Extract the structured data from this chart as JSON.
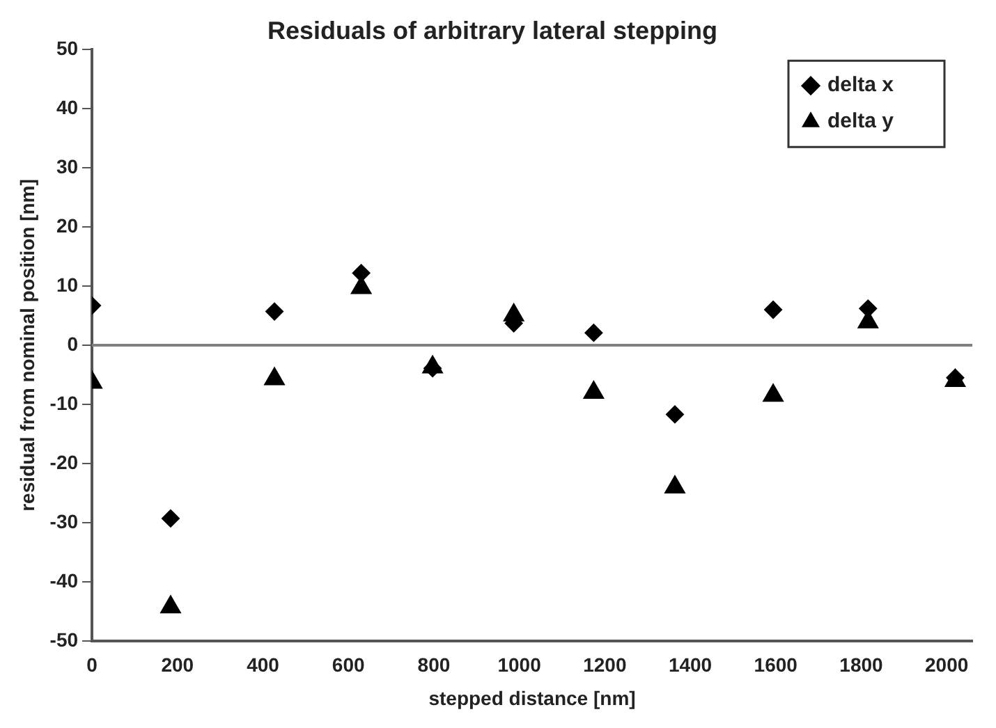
{
  "chart_data": {
    "type": "scatter",
    "title": "Residuals of arbitrary lateral stepping",
    "xlabel": "stepped distance [nm]",
    "ylabel": "residual from nominal position [nm]",
    "x": [
      0,
      184,
      427,
      630,
      797,
      987,
      1174,
      1364,
      1594,
      1816,
      2020
    ],
    "series": [
      {
        "name": "delta x",
        "color": "#000000",
        "marker": "diamond",
        "values": [
          6.7,
          -29.3,
          5.7,
          12.2,
          -3.9,
          3.7,
          2.1,
          -11.7,
          6.0,
          6.2,
          -5.5
        ]
      },
      {
        "name": "delta y",
        "color": "#000000",
        "marker": "triangle",
        "values": [
          -6.3,
          -44.3,
          -5.7,
          9.7,
          -3.7,
          5.1,
          -8.0,
          -24.0,
          -8.5,
          3.9,
          -6.0
        ]
      }
    ],
    "xlim": [
      0,
      2060
    ],
    "xticks": [
      0,
      200,
      400,
      600,
      800,
      1000,
      1200,
      1400,
      1600,
      1800,
      2000
    ],
    "ylim": [
      -50,
      50
    ],
    "yticks": [
      -50,
      -40,
      -30,
      -20,
      -10,
      0,
      10,
      20,
      30,
      40,
      50
    ],
    "ref_lines": [
      {
        "axis": "y",
        "value": 0,
        "color": "#808080"
      }
    ],
    "grid": false,
    "legend": "top right"
  }
}
